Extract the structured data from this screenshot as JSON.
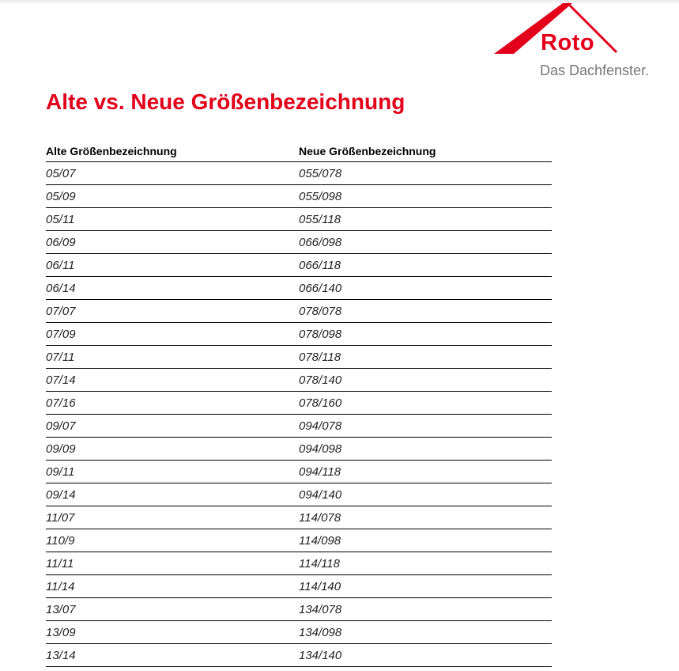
{
  "logo": {
    "brand": "Roto",
    "tagline": "Das Dachfenster.",
    "color": "#e2001a"
  },
  "title": "Alte vs. Neue Größenbezeichnung",
  "table": {
    "headers": [
      "Alte Größenbezeichnung",
      "Neue Größenbezeichnung"
    ],
    "rows": [
      [
        "05/07",
        "055/078"
      ],
      [
        "05/09",
        "055/098"
      ],
      [
        "05/11",
        "055/118"
      ],
      [
        "06/09",
        "066/098"
      ],
      [
        "06/11",
        "066/118"
      ],
      [
        "06/14",
        "066/140"
      ],
      [
        "07/07",
        "078/078"
      ],
      [
        "07/09",
        "078/098"
      ],
      [
        "07/11",
        "078/118"
      ],
      [
        "07/14",
        "078/140"
      ],
      [
        "07/16",
        "078/160"
      ],
      [
        "09/07",
        "094/078"
      ],
      [
        "09/09",
        "094/098"
      ],
      [
        "09/11",
        "094/118"
      ],
      [
        "09/14",
        "094/140"
      ],
      [
        "11/07",
        "114/078"
      ],
      [
        "110/9",
        "114/098"
      ],
      [
        "11/11",
        "114/118"
      ],
      [
        "11/14",
        "114/140"
      ],
      [
        "13/07",
        "134/078"
      ],
      [
        "13/09",
        "134/098"
      ],
      [
        "13/14",
        "134/140"
      ]
    ]
  }
}
